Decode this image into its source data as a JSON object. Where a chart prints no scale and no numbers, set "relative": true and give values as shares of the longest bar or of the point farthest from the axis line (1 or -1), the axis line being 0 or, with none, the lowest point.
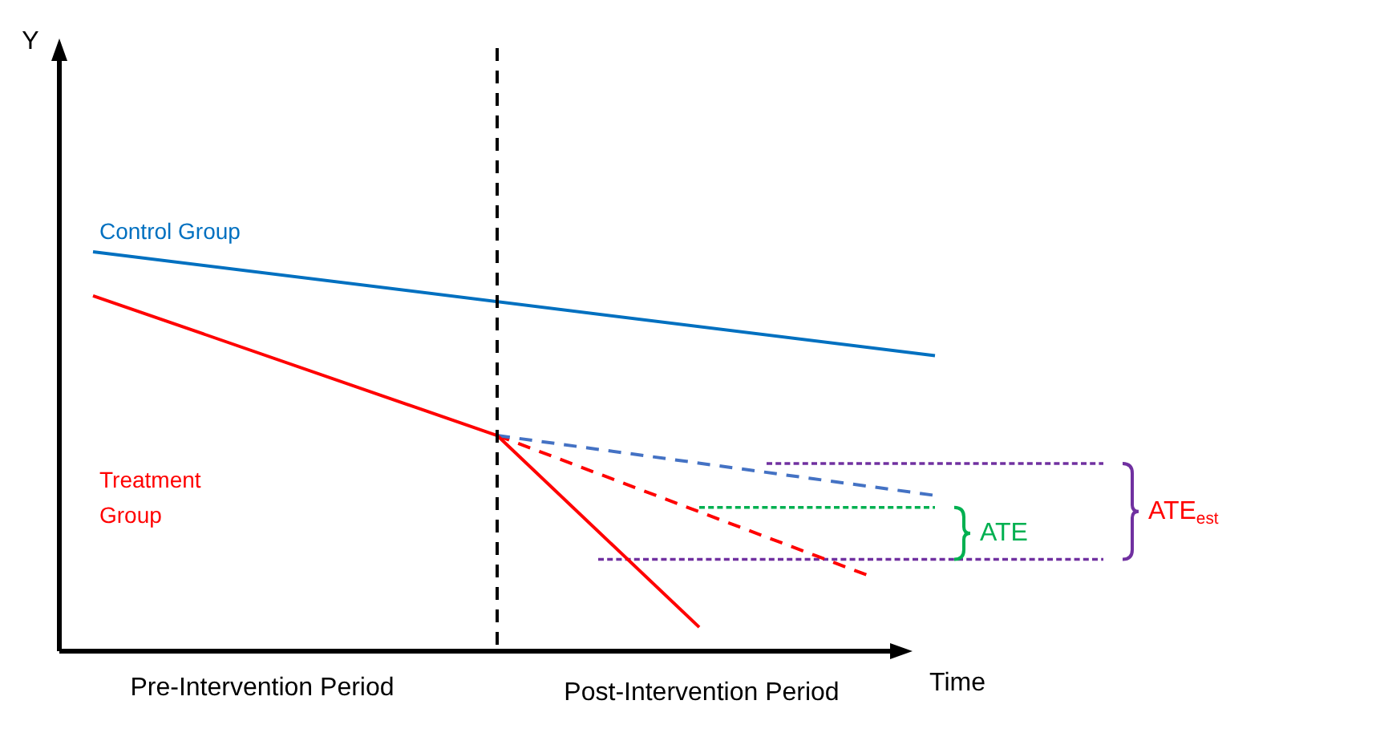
{
  "chart_data": {
    "type": "line",
    "relative": true,
    "xlabel": "Time",
    "legend": false,
    "marker": "none",
    "categories": [
      null,
      null,
      null,
      null,
      null,
      null,
      null,
      null,
      null,
      null,
      null,
      null,
      null,
      null,
      null,
      null,
      null,
      null,
      null,
      null,
      null,
      null,
      null,
      null,
      null,
      null,
      null,
      null,
      null,
      null,
      null,
      null
    ],
    "series": [
      {
        "name": "Control Group",
        "color": "#0070c0",
        "line_style": "solid",
        "values": [
          null,
          1,
          null,
          null,
          null,
          null,
          null,
          null,
          null,
          null,
          null,
          null,
          null,
          null,
          null,
          null,
          null,
          null,
          null,
          null,
          null,
          null,
          null,
          null,
          null,
          null,
          0.74,
          null,
          null,
          null,
          null,
          null
        ]
      },
      {
        "name": "Treatment Group",
        "color": "#ff0000",
        "line_style": "solid",
        "values": [
          null,
          0.89,
          null,
          null,
          null,
          null,
          null,
          null,
          null,
          null,
          null,
          null,
          null,
          0.54,
          null,
          null,
          null,
          null,
          null,
          0.06,
          null,
          null,
          null,
          null,
          null,
          null,
          null,
          null,
          null,
          null,
          null,
          null
        ]
      },
      {
        "color": "#4472c4",
        "line_style": "dashed",
        "values": [
          null,
          null,
          null,
          null,
          null,
          null,
          null,
          null,
          null,
          null,
          null,
          null,
          null,
          0.54,
          null,
          null,
          null,
          null,
          null,
          null,
          null,
          null,
          null,
          null,
          null,
          null,
          0.39,
          null,
          null,
          null,
          null,
          null
        ]
      },
      {
        "color": "#ff0000",
        "line_style": "dashed",
        "values": [
          null,
          null,
          null,
          null,
          null,
          null,
          null,
          null,
          null,
          null,
          null,
          null,
          null,
          0.54,
          null,
          null,
          null,
          null,
          null,
          null,
          null,
          null,
          null,
          null,
          0.19,
          null,
          null,
          null,
          null,
          null,
          null,
          null
        ]
      },
      {
        "color": "#7030a0",
        "line_style": "dotted",
        "values": [
          null,
          null,
          null,
          null,
          null,
          null,
          null,
          null,
          null,
          null,
          null,
          null,
          null,
          null,
          null,
          null,
          null,
          null,
          null,
          null,
          null,
          0.47,
          null,
          null,
          null,
          null,
          null,
          null,
          null,
          null,
          null,
          0.47
        ]
      },
      {
        "color": "#7030a0",
        "line_style": "dotted",
        "values": [
          null,
          null,
          null,
          null,
          null,
          null,
          null,
          null,
          null,
          null,
          null,
          null,
          null,
          null,
          null,
          null,
          0.23,
          null,
          null,
          null,
          null,
          null,
          null,
          null,
          null,
          null,
          null,
          null,
          null,
          null,
          null,
          0.23
        ]
      },
      {
        "color": "#00b050",
        "line_style": "dotted",
        "values": [
          null,
          null,
          null,
          null,
          null,
          null,
          null,
          null,
          null,
          null,
          null,
          null,
          null,
          null,
          null,
          null,
          null,
          null,
          null,
          0.36,
          null,
          null,
          null,
          null,
          null,
          null,
          0.36,
          null,
          null,
          null,
          null,
          null
        ]
      }
    ],
    "annotations": [
      "Pre-Intervention Period",
      "Post-Intervention Period",
      "ATE",
      "ATE$_{est}$",
      "Y"
    ]
  }
}
